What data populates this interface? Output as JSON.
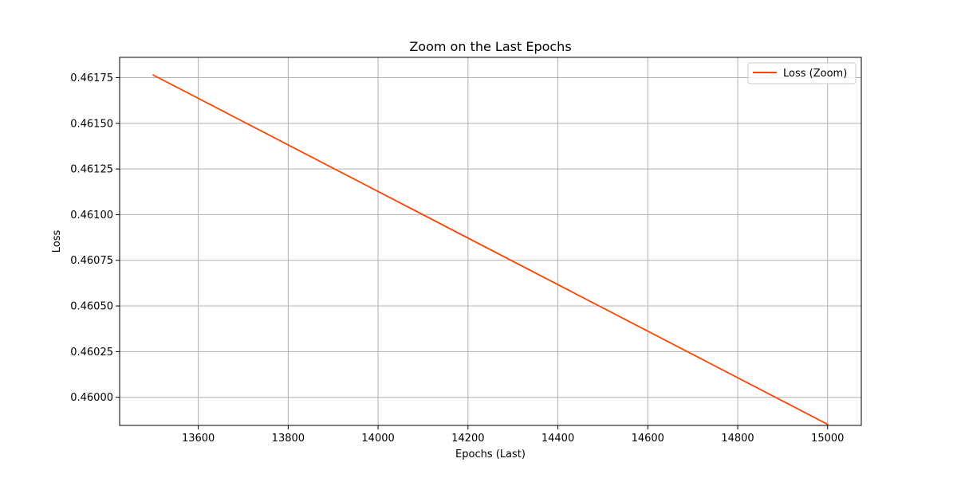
{
  "chart_data": {
    "type": "line",
    "title": "Zoom on the Last Epochs",
    "xlabel": "Epochs (Last)",
    "ylabel": "Loss",
    "xlim": [
      13425,
      15075
    ],
    "ylim": [
      0.459846,
      0.461861
    ],
    "xticks": [
      13600,
      13800,
      14000,
      14200,
      14400,
      14600,
      14800,
      15000
    ],
    "yticks": [
      0.46,
      0.46025,
      0.4605,
      0.46075,
      0.461,
      0.46125,
      0.4615,
      0.46175
    ],
    "xtick_labels": [
      "13600",
      "13800",
      "14000",
      "14200",
      "14400",
      "14600",
      "14800",
      "15000"
    ],
    "ytick_labels": [
      "0.46000",
      "0.46025",
      "0.46050",
      "0.46075",
      "0.46100",
      "0.46125",
      "0.46150",
      "0.46175"
    ],
    "grid": true,
    "legend_position": "top-right",
    "series": [
      {
        "name": "Loss (Zoom)",
        "color": "#ff4500",
        "x": [
          13500,
          15000
        ],
        "y": [
          0.461764,
          0.459852
        ]
      }
    ]
  }
}
